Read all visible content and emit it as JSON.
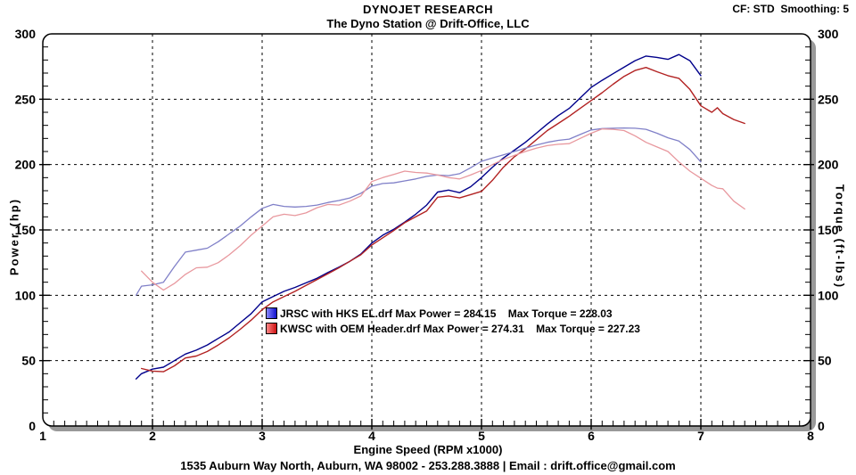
{
  "header": {
    "title": "DYNOJET RESEARCH",
    "subtitle": "The Dyno Station @ Drift-Office, LLC",
    "correction_info": "CF: STD  Smoothing: 5"
  },
  "footer": {
    "address": "1535 Auburn Way North, Auburn, WA 98002 - 253.288.3888 | Email : drift.office@gmail.com"
  },
  "chart_data": {
    "type": "line",
    "title": "DYNOJET RESEARCH",
    "subtitle": "The Dyno Station @ Drift-Office, LLC",
    "xlabel": "Engine Speed (RPM x1000)",
    "ylabel_left": "Power (hp)",
    "ylabel_right": "Torque (ft-lbs)",
    "xlim": [
      1,
      8
    ],
    "ylim_left": [
      0,
      300
    ],
    "ylim_right": [
      0,
      300
    ],
    "x_ticks": [
      1,
      2,
      3,
      4,
      5,
      6,
      7,
      8
    ],
    "y_ticks": [
      0,
      50,
      100,
      150,
      200,
      250,
      300
    ],
    "minor_x_step": 0.1,
    "minor_y_step": 10,
    "grid": "dashed black lines at major ticks",
    "legend_position": "inside plot, center-left",
    "max_values": {
      "jrsc": {
        "max_power": 284.15,
        "max_torque": 228.03
      },
      "kwsc": {
        "max_power": 274.31,
        "max_torque": 227.23
      }
    },
    "legend": [
      {
        "swatch": "blue-gradient",
        "label": "JRSC with HKS EL.drf Max Power = 284.15    Max Torque = 228.03"
      },
      {
        "swatch": "red-gradient",
        "label": "KWSC with OEM Header.drf Max Power = 274.31    Max Torque = 227.23"
      }
    ],
    "series": [
      {
        "name": "JRSC with HKS EL.drf - Power (hp)",
        "axis": "left",
        "color": "#00008b",
        "width": 1.4,
        "x": [
          1.85,
          1.9,
          2.0,
          2.1,
          2.2,
          2.3,
          2.4,
          2.5,
          2.6,
          2.7,
          2.8,
          2.9,
          3.0,
          3.1,
          3.2,
          3.3,
          3.4,
          3.5,
          3.6,
          3.7,
          3.8,
          3.9,
          4.0,
          4.1,
          4.2,
          4.3,
          4.4,
          4.5,
          4.6,
          4.7,
          4.8,
          4.9,
          5.0,
          5.1,
          5.2,
          5.3,
          5.4,
          5.5,
          5.6,
          5.7,
          5.8,
          5.9,
          6.0,
          6.1,
          6.2,
          6.3,
          6.4,
          6.5,
          6.6,
          6.7,
          6.8,
          6.9,
          7.0
        ],
        "y": [
          36,
          40,
          43.5,
          45,
          50,
          55,
          58,
          62,
          67,
          72,
          79,
          86,
          95,
          99,
          103,
          106,
          109.5,
          113,
          117.5,
          121.5,
          126,
          131.5,
          140,
          146,
          150.5,
          156,
          162,
          169,
          179,
          180.5,
          178.5,
          183,
          190,
          198,
          205,
          211,
          217,
          224,
          231,
          237.5,
          243,
          251,
          259,
          264.5,
          269.5,
          274.5,
          279.5,
          283,
          282,
          280.5,
          284.15,
          279.5,
          268
        ]
      },
      {
        "name": "KWSC with OEM Header.drf - Power (hp)",
        "axis": "left",
        "color": "#b22222",
        "width": 1.4,
        "x": [
          1.9,
          2.0,
          2.1,
          2.2,
          2.3,
          2.4,
          2.5,
          2.6,
          2.7,
          2.8,
          2.9,
          3.0,
          3.1,
          3.2,
          3.3,
          3.4,
          3.5,
          3.6,
          3.7,
          3.8,
          3.9,
          4.0,
          4.1,
          4.2,
          4.3,
          4.4,
          4.5,
          4.6,
          4.7,
          4.8,
          4.9,
          5.0,
          5.1,
          5.2,
          5.3,
          5.4,
          5.5,
          5.6,
          5.7,
          5.8,
          5.9,
          6.0,
          6.1,
          6.2,
          6.3,
          6.4,
          6.5,
          6.6,
          6.7,
          6.8,
          6.9,
          7.0,
          7.1,
          7.15,
          7.2,
          7.3,
          7.4
        ],
        "y": [
          44,
          42,
          41.5,
          46,
          52,
          53.5,
          57,
          62,
          67.5,
          74,
          81,
          89,
          95,
          99,
          103,
          107.5,
          112,
          116.5,
          121,
          126,
          131,
          138.5,
          144,
          149.5,
          155.5,
          160,
          164.5,
          175,
          176,
          174.5,
          177,
          179.5,
          188,
          198,
          206,
          212,
          219,
          226,
          231.5,
          237,
          243,
          249,
          255,
          261.5,
          267.5,
          272,
          274.31,
          271,
          268,
          266,
          257.5,
          245,
          240,
          243.5,
          239,
          234.5,
          231.5
        ]
      },
      {
        "name": "JRSC with HKS EL.drf - Torque (ft-lbs)",
        "axis": "right",
        "color": "#8080c8",
        "width": 1.3,
        "x": [
          1.85,
          1.9,
          2.0,
          2.1,
          2.2,
          2.3,
          2.4,
          2.5,
          2.6,
          2.7,
          2.8,
          2.9,
          3.0,
          3.1,
          3.2,
          3.3,
          3.4,
          3.5,
          3.6,
          3.7,
          3.8,
          3.9,
          4.0,
          4.1,
          4.2,
          4.3,
          4.4,
          4.5,
          4.6,
          4.7,
          4.8,
          4.9,
          5.0,
          5.1,
          5.2,
          5.3,
          5.4,
          5.5,
          5.6,
          5.7,
          5.8,
          5.9,
          6.0,
          6.1,
          6.2,
          6.3,
          6.4,
          6.5,
          6.6,
          6.7,
          6.8,
          6.9,
          7.0
        ],
        "y": [
          100,
          107,
          108,
          110,
          122,
          133,
          134.5,
          136,
          141,
          147,
          153,
          160,
          166.5,
          169.5,
          168,
          167.5,
          168,
          169,
          171,
          172.5,
          174.5,
          178,
          183.5,
          185.5,
          186,
          187.5,
          189,
          191,
          192,
          191.5,
          193,
          197.5,
          202.5,
          205,
          207.5,
          210,
          212.5,
          215,
          217,
          218.5,
          219.5,
          223,
          226.5,
          227.5,
          227.8,
          228.03,
          227.8,
          227,
          224,
          220.5,
          218,
          211.5,
          202
        ]
      },
      {
        "name": "KWSC with OEM Header.drf - Torque (ft-lbs)",
        "axis": "right",
        "color": "#e8989e",
        "width": 1.3,
        "x": [
          1.9,
          2.0,
          2.1,
          2.2,
          2.3,
          2.4,
          2.5,
          2.6,
          2.7,
          2.8,
          2.9,
          3.0,
          3.1,
          3.2,
          3.3,
          3.4,
          3.5,
          3.6,
          3.7,
          3.8,
          3.9,
          4.0,
          4.1,
          4.2,
          4.3,
          4.4,
          4.5,
          4.6,
          4.7,
          4.8,
          4.9,
          5.0,
          5.1,
          5.2,
          5.3,
          5.4,
          5.5,
          5.6,
          5.7,
          5.8,
          5.9,
          6.0,
          6.1,
          6.2,
          6.3,
          6.4,
          6.5,
          6.6,
          6.7,
          6.8,
          6.9,
          7.0,
          7.1,
          7.15,
          7.2,
          7.3,
          7.4
        ],
        "y": [
          118.5,
          110,
          104,
          109,
          116,
          121,
          121.5,
          125,
          131,
          138,
          146,
          153,
          160,
          162,
          161,
          163,
          167,
          169.5,
          169,
          172,
          176,
          187,
          190,
          192.5,
          195,
          194,
          193.5,
          192,
          190,
          189,
          192,
          195.5,
          200,
          204,
          207,
          210,
          212.5,
          214.5,
          215.5,
          216,
          220,
          224,
          227.23,
          227,
          226,
          222,
          217,
          213.5,
          210,
          202,
          195,
          189.5,
          184,
          182,
          181.5,
          172,
          166
        ]
      }
    ],
    "colors": {
      "power_jrsc": "#00008b",
      "power_kwsc": "#b22222",
      "torque_jrsc": "#8080c8",
      "torque_kwsc": "#e8989e",
      "plot_border": "#000000",
      "plot_shadow": "#999999",
      "grid": "#000000",
      "background": "#ffffff"
    }
  }
}
